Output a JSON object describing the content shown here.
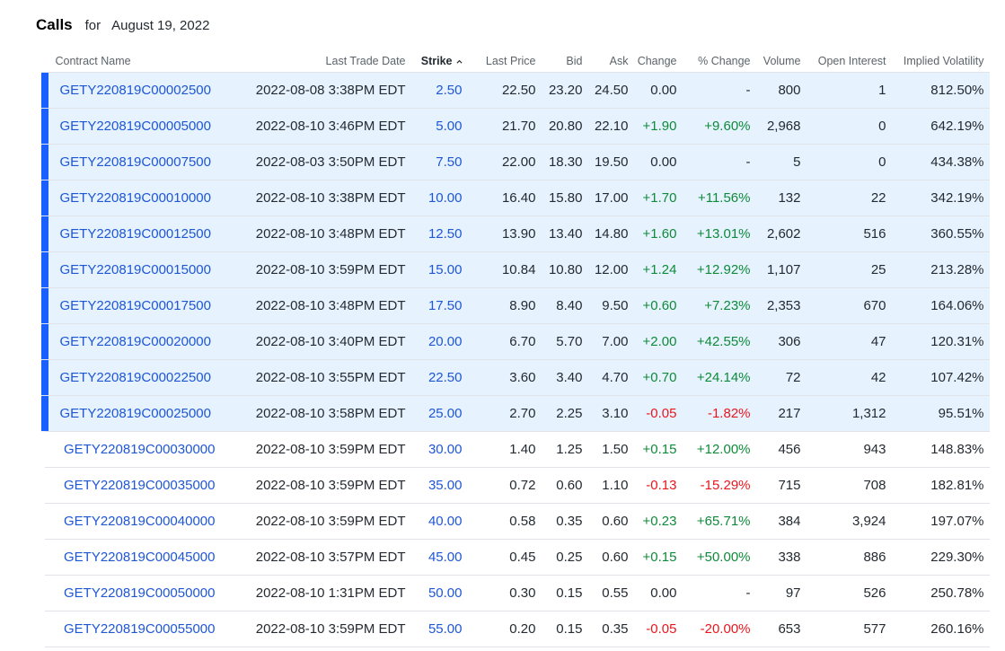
{
  "heading": {
    "title": "Calls",
    "for_text": "for",
    "date": "August 19, 2022"
  },
  "columns": [
    "Contract Name",
    "Last Trade Date",
    "Strike",
    "Last Price",
    "Bid",
    "Ask",
    "Change",
    "% Change",
    "Volume",
    "Open Interest",
    "Implied Volatility"
  ],
  "colors": {
    "in_the_money_bg": "#e6f2fd",
    "in_the_money_bar": "#1a5fff",
    "link": "#1e56d6",
    "positive": "#0f8a3a",
    "negative": "#e8171e"
  },
  "rows": [
    {
      "contract": "GETY220819C00002500",
      "date": "2022-08-08 3:38PM EDT",
      "strike": "2.50",
      "last": "22.50",
      "bid": "23.20",
      "ask": "24.50",
      "change": "0.00",
      "pct": "-",
      "volume": "800",
      "oi": "1",
      "iv": "812.50%",
      "itm": true,
      "dir": "neu"
    },
    {
      "contract": "GETY220819C00005000",
      "date": "2022-08-10 3:46PM EDT",
      "strike": "5.00",
      "last": "21.70",
      "bid": "20.80",
      "ask": "22.10",
      "change": "+1.90",
      "pct": "+9.60%",
      "volume": "2,968",
      "oi": "0",
      "iv": "642.19%",
      "itm": true,
      "dir": "pos"
    },
    {
      "contract": "GETY220819C00007500",
      "date": "2022-08-03 3:50PM EDT",
      "strike": "7.50",
      "last": "22.00",
      "bid": "18.30",
      "ask": "19.50",
      "change": "0.00",
      "pct": "-",
      "volume": "5",
      "oi": "0",
      "iv": "434.38%",
      "itm": true,
      "dir": "neu"
    },
    {
      "contract": "GETY220819C00010000",
      "date": "2022-08-10 3:38PM EDT",
      "strike": "10.00",
      "last": "16.40",
      "bid": "15.80",
      "ask": "17.00",
      "change": "+1.70",
      "pct": "+11.56%",
      "volume": "132",
      "oi": "22",
      "iv": "342.19%",
      "itm": true,
      "dir": "pos"
    },
    {
      "contract": "GETY220819C00012500",
      "date": "2022-08-10 3:48PM EDT",
      "strike": "12.50",
      "last": "13.90",
      "bid": "13.40",
      "ask": "14.80",
      "change": "+1.60",
      "pct": "+13.01%",
      "volume": "2,602",
      "oi": "516",
      "iv": "360.55%",
      "itm": true,
      "dir": "pos"
    },
    {
      "contract": "GETY220819C00015000",
      "date": "2022-08-10 3:59PM EDT",
      "strike": "15.00",
      "last": "10.84",
      "bid": "10.80",
      "ask": "12.00",
      "change": "+1.24",
      "pct": "+12.92%",
      "volume": "1,107",
      "oi": "25",
      "iv": "213.28%",
      "itm": true,
      "dir": "pos"
    },
    {
      "contract": "GETY220819C00017500",
      "date": "2022-08-10 3:48PM EDT",
      "strike": "17.50",
      "last": "8.90",
      "bid": "8.40",
      "ask": "9.50",
      "change": "+0.60",
      "pct": "+7.23%",
      "volume": "2,353",
      "oi": "670",
      "iv": "164.06%",
      "itm": true,
      "dir": "pos"
    },
    {
      "contract": "GETY220819C00020000",
      "date": "2022-08-10 3:40PM EDT",
      "strike": "20.00",
      "last": "6.70",
      "bid": "5.70",
      "ask": "7.00",
      "change": "+2.00",
      "pct": "+42.55%",
      "volume": "306",
      "oi": "47",
      "iv": "120.31%",
      "itm": true,
      "dir": "pos"
    },
    {
      "contract": "GETY220819C00022500",
      "date": "2022-08-10 3:55PM EDT",
      "strike": "22.50",
      "last": "3.60",
      "bid": "3.40",
      "ask": "4.70",
      "change": "+0.70",
      "pct": "+24.14%",
      "volume": "72",
      "oi": "42",
      "iv": "107.42%",
      "itm": true,
      "dir": "pos"
    },
    {
      "contract": "GETY220819C00025000",
      "date": "2022-08-10 3:58PM EDT",
      "strike": "25.00",
      "last": "2.70",
      "bid": "2.25",
      "ask": "3.10",
      "change": "-0.05",
      "pct": "-1.82%",
      "volume": "217",
      "oi": "1,312",
      "iv": "95.51%",
      "itm": true,
      "dir": "neg"
    },
    {
      "contract": "GETY220819C00030000",
      "date": "2022-08-10 3:59PM EDT",
      "strike": "30.00",
      "last": "1.40",
      "bid": "1.25",
      "ask": "1.50",
      "change": "+0.15",
      "pct": "+12.00%",
      "volume": "456",
      "oi": "943",
      "iv": "148.83%",
      "itm": false,
      "dir": "pos"
    },
    {
      "contract": "GETY220819C00035000",
      "date": "2022-08-10 3:59PM EDT",
      "strike": "35.00",
      "last": "0.72",
      "bid": "0.60",
      "ask": "1.10",
      "change": "-0.13",
      "pct": "-15.29%",
      "volume": "715",
      "oi": "708",
      "iv": "182.81%",
      "itm": false,
      "dir": "neg"
    },
    {
      "contract": "GETY220819C00040000",
      "date": "2022-08-10 3:59PM EDT",
      "strike": "40.00",
      "last": "0.58",
      "bid": "0.35",
      "ask": "0.60",
      "change": "+0.23",
      "pct": "+65.71%",
      "volume": "384",
      "oi": "3,924",
      "iv": "197.07%",
      "itm": false,
      "dir": "pos"
    },
    {
      "contract": "GETY220819C00045000",
      "date": "2022-08-10 3:57PM EDT",
      "strike": "45.00",
      "last": "0.45",
      "bid": "0.25",
      "ask": "0.60",
      "change": "+0.15",
      "pct": "+50.00%",
      "volume": "338",
      "oi": "886",
      "iv": "229.30%",
      "itm": false,
      "dir": "pos"
    },
    {
      "contract": "GETY220819C00050000",
      "date": "2022-08-10 1:31PM EDT",
      "strike": "50.00",
      "last": "0.30",
      "bid": "0.15",
      "ask": "0.55",
      "change": "0.00",
      "pct": "-",
      "volume": "97",
      "oi": "526",
      "iv": "250.78%",
      "itm": false,
      "dir": "neu"
    },
    {
      "contract": "GETY220819C00055000",
      "date": "2022-08-10 3:59PM EDT",
      "strike": "55.00",
      "last": "0.20",
      "bid": "0.15",
      "ask": "0.35",
      "change": "-0.05",
      "pct": "-20.00%",
      "volume": "653",
      "oi": "577",
      "iv": "260.16%",
      "itm": false,
      "dir": "neg"
    }
  ]
}
